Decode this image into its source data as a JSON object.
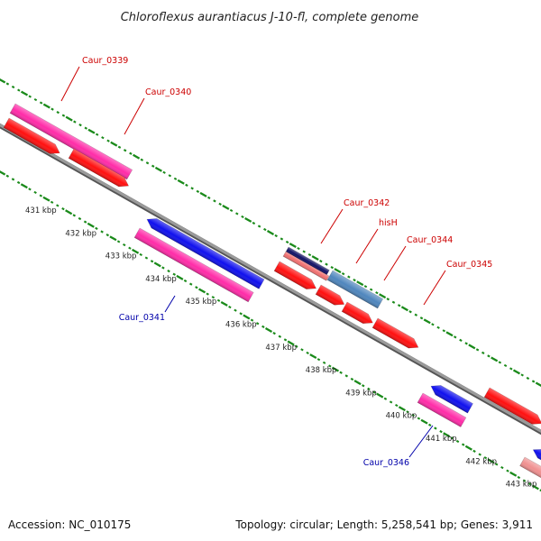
{
  "title": "Chloroflexus aurantiacus J-10-fl, complete genome",
  "footer": {
    "accession": "Accession: NC_010175",
    "summary": "Topology: circular; Length: 5,258,541 bp; Genes: 3,911"
  },
  "colors": {
    "backbone": "#8a8a8a",
    "tick": "#1a8a1a",
    "label_forward": "#cc0000",
    "label_reverse": "#0000aa",
    "feature_red": "#ff1010",
    "feature_magenta": "#ff2ca8",
    "feature_blue": "#1010ee",
    "feature_navy": "#111166",
    "feature_steelblue": "#4f86bd",
    "feature_salmon": "#f07070",
    "feature_pink": "#f09090"
  },
  "scale_ticks": [
    {
      "label": "431 kbp"
    },
    {
      "label": "432 kbp"
    },
    {
      "label": "433 kbp"
    },
    {
      "label": "434 kbp"
    },
    {
      "label": "435 kbp"
    },
    {
      "label": "436 kbp"
    },
    {
      "label": "437 kbp"
    },
    {
      "label": "438 kbp"
    },
    {
      "label": "439 kbp"
    },
    {
      "label": "440 kbp"
    },
    {
      "label": "441 kbp"
    },
    {
      "label": "442 kbp"
    },
    {
      "label": "443 kbp"
    }
  ],
  "gene_labels": [
    {
      "text": "Caur_0339",
      "strand": "forward"
    },
    {
      "text": "Caur_0340",
      "strand": "forward"
    },
    {
      "text": "Caur_0342",
      "strand": "forward"
    },
    {
      "text": "hisH",
      "strand": "forward"
    },
    {
      "text": "Caur_0344",
      "strand": "forward"
    },
    {
      "text": "Caur_0345",
      "strand": "forward"
    },
    {
      "text": "Caur_0341",
      "strand": "reverse"
    },
    {
      "text": "Caur_0346",
      "strand": "reverse"
    }
  ]
}
